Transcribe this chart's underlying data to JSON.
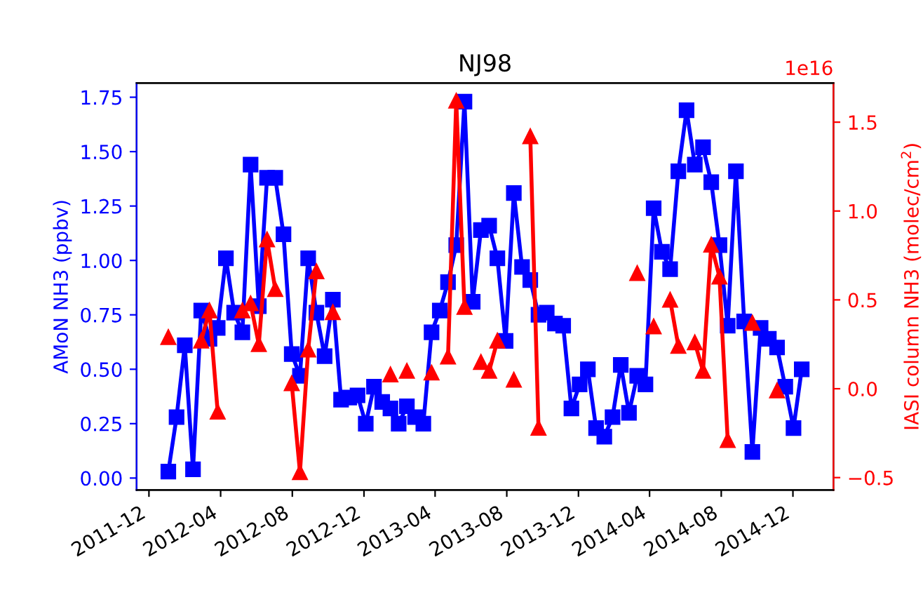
{
  "chart_data": {
    "type": "line",
    "title": "NJ98",
    "ylabel": "AMoN NH3 (ppbv)",
    "y2label": "IASI column NH3 (molec/cm$^{2}$)",
    "annotations": [
      "1e16"
    ],
    "x": [
      "2012-01-03",
      "2012-01-17",
      "2012-01-31",
      "2012-02-14",
      "2012-02-28",
      "2012-03-13",
      "2012-03-27",
      "2012-04-10",
      "2012-04-24",
      "2012-05-08",
      "2012-05-22",
      "2012-06-05",
      "2012-06-19",
      "2012-07-03",
      "2012-07-17",
      "2012-07-31",
      "2012-08-14",
      "2012-08-28",
      "2012-09-11",
      "2012-09-25",
      "2012-10-09",
      "2012-10-23",
      "2012-11-06",
      "2012-11-20",
      "2012-12-04",
      "2012-12-18",
      "2013-01-01",
      "2013-01-15",
      "2013-01-29",
      "2013-02-12",
      "2013-02-26",
      "2013-03-12",
      "2013-03-26",
      "2013-04-09",
      "2013-04-23",
      "2013-05-07",
      "2013-05-21",
      "2013-06-04",
      "2013-06-18",
      "2013-07-02",
      "2013-07-16",
      "2013-07-30",
      "2013-08-13",
      "2013-08-27",
      "2013-09-10",
      "2013-09-24",
      "2013-10-08",
      "2013-10-22",
      "2013-11-05",
      "2013-11-19",
      "2013-12-03",
      "2013-12-17",
      "2013-12-31",
      "2014-01-14",
      "2014-01-28",
      "2014-02-11",
      "2014-02-25",
      "2014-03-11",
      "2014-03-25",
      "2014-04-08",
      "2014-04-22",
      "2014-05-06",
      "2014-05-20",
      "2014-06-03",
      "2014-06-17",
      "2014-07-01",
      "2014-07-15",
      "2014-07-29",
      "2014-08-12",
      "2014-08-26",
      "2014-09-09",
      "2014-09-23",
      "2014-10-07",
      "2014-10-21",
      "2014-11-04",
      "2014-11-18",
      "2014-12-02",
      "2014-12-16"
    ],
    "series": [
      {
        "color": "#0000ff",
        "marker": "square",
        "values": [
          0.03,
          0.28,
          0.61,
          0.04,
          0.77,
          0.64,
          0.69,
          1.01,
          0.76,
          0.67,
          1.44,
          0.79,
          1.38,
          1.38,
          1.12,
          0.57,
          0.47,
          1.01,
          0.76,
          0.56,
          0.82,
          0.36,
          0.37,
          0.38,
          0.25,
          0.42,
          0.35,
          0.32,
          0.25,
          0.33,
          0.28,
          0.25,
          0.67,
          0.77,
          0.9,
          1.07,
          1.73,
          0.81,
          1.14,
          1.16,
          1.01,
          0.63,
          1.31,
          0.97,
          0.91,
          0.75,
          0.76,
          0.71,
          0.7,
          0.32,
          0.43,
          0.5,
          0.23,
          0.19,
          0.28,
          0.52,
          0.3,
          0.47,
          0.43,
          1.24,
          1.04,
          0.96,
          1.41,
          1.69,
          1.44,
          1.52,
          1.36,
          1.07,
          0.7,
          1.41,
          0.72,
          0.12,
          0.69,
          0.64,
          0.6,
          0.42,
          0.23,
          0.5
        ]
      },
      {
        "color": "#ff0000",
        "marker": "triangle",
        "axis": "y2",
        "values": [
          0.29,
          null,
          null,
          null,
          0.27,
          0.44,
          -0.13,
          null,
          null,
          0.44,
          0.48,
          0.25,
          0.84,
          0.56,
          null,
          0.03,
          -0.47,
          0.22,
          0.66,
          null,
          0.43,
          null,
          null,
          null,
          null,
          null,
          null,
          0.08,
          null,
          0.1,
          null,
          null,
          0.09,
          null,
          0.18,
          1.62,
          0.46,
          null,
          0.15,
          0.1,
          0.27,
          null,
          0.05,
          null,
          1.42,
          -0.22,
          null,
          null,
          null,
          null,
          null,
          null,
          null,
          null,
          null,
          null,
          null,
          0.65,
          null,
          0.35,
          null,
          0.5,
          0.24,
          null,
          0.26,
          0.1,
          0.81,
          0.63,
          -0.29,
          null,
          null,
          0.37,
          null,
          null,
          -0.01,
          null,
          null,
          null
        ]
      }
    ],
    "line_style": "solid",
    "xlim": [
      "2011-11-10",
      "2015-02-08"
    ],
    "xticks": [
      "2011-12",
      "2012-04",
      "2012-08",
      "2012-12",
      "2013-04",
      "2013-08",
      "2013-12",
      "2014-04",
      "2014-08",
      "2014-12"
    ],
    "ylim": [
      -0.055,
      1.815
    ],
    "yticks": [
      {
        "value": 0,
        "label": "0.00"
      },
      0.25,
      {
        "value": 0.5,
        "label": "0.50"
      },
      0.75,
      {
        "value": 1,
        "label": "1.00"
      },
      1.25,
      {
        "value": 1.5,
        "label": "1.50"
      },
      1.75
    ],
    "y2lim": [
      -0.57,
      1.72
    ],
    "y2ticks": [
      {
        "value": -0.5,
        "label": "−0.5"
      },
      {
        "value": 0,
        "label": "0.0"
      },
      0.5,
      {
        "value": 1,
        "label": "1.0"
      },
      1.5
    ],
    "grid": false,
    "legend": false
  }
}
